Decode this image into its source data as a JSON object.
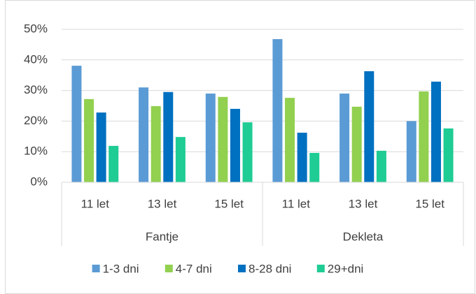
{
  "chart_data": {
    "type": "bar",
    "groups": [
      {
        "name": "Fantje",
        "categories": [
          "11 let",
          "13 let",
          "15 let"
        ]
      },
      {
        "name": "Dekleta",
        "categories": [
          "11 let",
          "13 let",
          "15 let"
        ]
      }
    ],
    "series": [
      {
        "name": "1-3 dni",
        "color": "#5b9bd5",
        "values": [
          38.1,
          31.0,
          29.0,
          46.8,
          29.0,
          20.0
        ]
      },
      {
        "name": "4-7 dni",
        "color": "#92d050",
        "values": [
          27.2,
          24.9,
          27.9,
          27.6,
          24.7,
          29.7
        ]
      },
      {
        "name": "8-28 dni",
        "color": "#0070c0",
        "values": [
          22.8,
          29.5,
          24.0,
          16.2,
          36.3,
          32.9
        ]
      },
      {
        "name": "29+dni",
        "color": "#1fcc94",
        "values": [
          11.9,
          14.8,
          19.6,
          9.6,
          10.3,
          17.6
        ]
      }
    ],
    "ylim": [
      0,
      50
    ],
    "yticks": [
      {
        "value": 0,
        "label": "0%"
      },
      {
        "value": 10,
        "label": "10%"
      },
      {
        "value": 20,
        "label": "20%"
      },
      {
        "value": 30,
        "label": "30%"
      },
      {
        "value": 40,
        "label": "40%"
      },
      {
        "value": 50,
        "label": "50%"
      }
    ],
    "grid": true,
    "legend": "bottom"
  }
}
